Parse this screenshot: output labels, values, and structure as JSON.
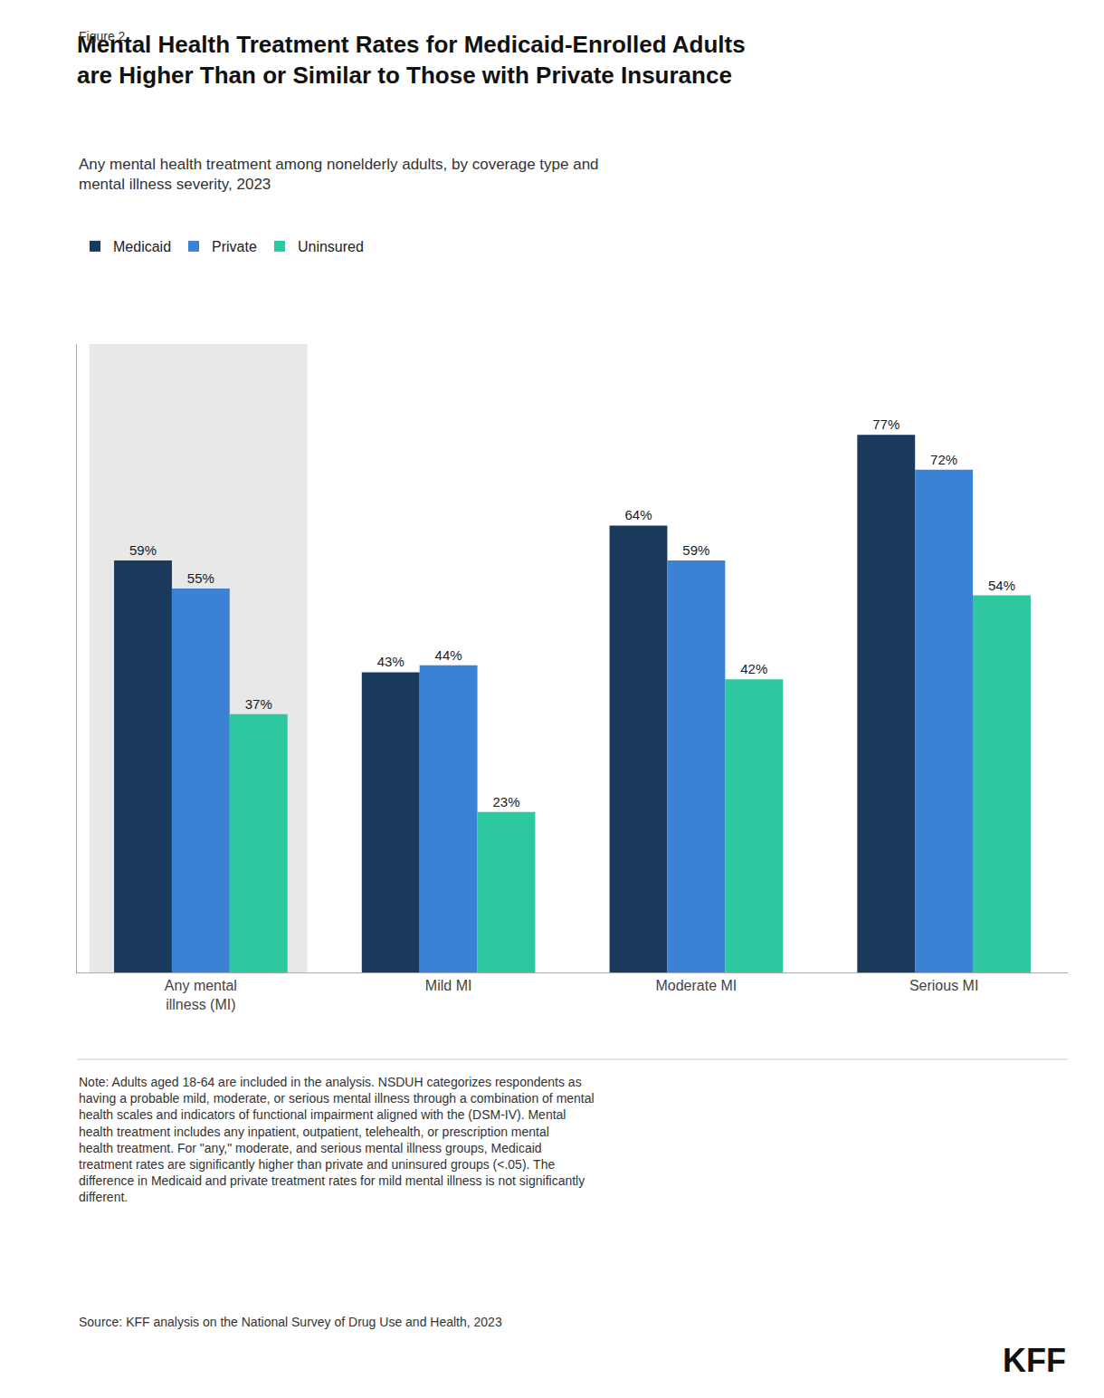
{
  "chart_data": {
    "type": "bar",
    "figure_label": "Figure 2",
    "title": "Mental Health Treatment Rates for Medicaid-Enrolled Adults\nare Higher Than or Similar to Those with Private Insurance",
    "subtitle": "Any mental health treatment among nonelderly adults, by coverage type and\nmental illness severity, 2023",
    "categories": [
      "Any mental\nillness (MI)",
      "Mild MI",
      "Moderate MI",
      "Serious MI"
    ],
    "series": [
      {
        "name": "Medicaid",
        "color": "#1a3a5c",
        "values": [
          59,
          43,
          64,
          77
        ],
        "value_labels": [
          "59%",
          "43%",
          "64%",
          "77%"
        ]
      },
      {
        "name": "Private",
        "color": "#3b82d4",
        "values": [
          55,
          44,
          59,
          72
        ],
        "value_labels": [
          "55%",
          "44%",
          "59%",
          "72%"
        ]
      },
      {
        "name": "Uninsured",
        "color": "#2dc8a0",
        "values": [
          37,
          23,
          42,
          54
        ],
        "value_labels": [
          "37%",
          "23%",
          "42%",
          "54%"
        ]
      }
    ],
    "ylim": [
      0,
      90
    ],
    "grid": false,
    "legend": "top",
    "data_labels": true,
    "tick_labels": "x",
    "note": "Note: Adults aged 18-64 are included in the analysis. NSDUH categorizes respondents as\nhaving a probable mild, moderate, or serious mental illness through a combination of mental\nhealth scales and indicators of functional impairment aligned with the (DSM-IV). Mental\nhealth treatment includes any inpatient, outpatient, telehealth, or prescription mental\nhealth treatment. For \"any,\" moderate, and serious mental illness groups, Medicaid\ntreatment rates are significantly higher than private and uninsured groups (<.05). The\ndifference in Medicaid and private treatment rates for mild mental illness is not significantly\ndifferent.",
    "source": "Source: KFF analysis on the National Survey of Drug Use and Health, 2023",
    "credit": "KFF"
  }
}
